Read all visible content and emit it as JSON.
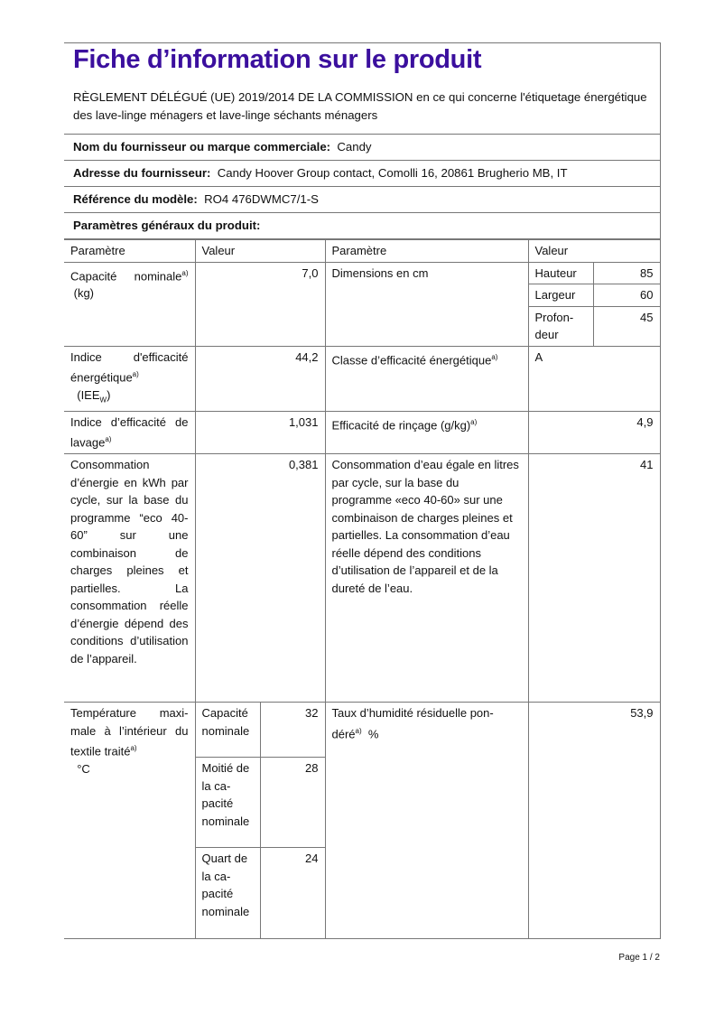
{
  "title": "Fiche d’information sur le produit",
  "regulation": "RÈGLEMENT DÉLÉGUÉ (UE) 2019/2014 DE LA COMMISSION en ce qui concerne l'étiquetage énergétique des lave-linge ménagers et lave-linge séchants ménagers",
  "supplier": {
    "label": "Nom du fournisseur ou marque commerciale:",
    "value": "Candy"
  },
  "address": {
    "label": "Adresse du fournisseur:",
    "value": "Candy Hoover Group contact, Comolli 16, 20861 Brugherio MB, IT"
  },
  "model": {
    "label": "Référence du modèle:",
    "value": "RO4 476DWMC7/1-S"
  },
  "section": "Paramètres généraux du produit:",
  "headers": {
    "param1": "Paramètre",
    "value1": "Valeur",
    "param2": "Paramètre",
    "value2": "Valeur"
  },
  "note": "a)",
  "rows": {
    "capacity": {
      "label": "Capacité nomina­le",
      "unit": "(kg)",
      "value": "7,0"
    },
    "dimensions": {
      "label": "Dimensions en cm",
      "height_label": "Hauteur",
      "height": "85",
      "width_label": "Largeur",
      "width": "60",
      "depth_label": "Profon­deur",
      "depth": "45"
    },
    "eei": {
      "label": "Indice d'efficaci­té énergétique",
      "unit": "(IEE",
      "unit_sub": "W",
      "unit_end": ")",
      "value": "44,2"
    },
    "energy_class": {
      "label": "Classe d’efficacité énergétique",
      "value": "A"
    },
    "washing": {
      "label": "Indice d’efficacité de lavage",
      "value": "1,031"
    },
    "rinsing": {
      "label": "Efficacité de rinçage (g/kg)",
      "value": "4,9"
    },
    "energy": {
      "label": "Consommation d’énergie en kWh par cycle, sur la base du programme “eco 40-60” sur une combinaison de charges pleines et partielles. La consommation réelle d’énergie dé­pend des condi­tions d’utilisation de l’appareil.",
      "value": "0,381"
    },
    "water": {
      "label": "Consommation d’eau égale en litres par cycle, sur la base du programme «eco 40-60» sur une combinaison de charges pleines et partielles. La consommation d’eau réelle dé­pend des conditions d’utilisa­tion de l’appareil et de la dure­té de l’eau.",
      "value": "41"
    },
    "temperature": {
      "label": "Température maxi­male à l’intérieur du textile traité",
      "unit": "°C",
      "sub": [
        {
          "label": "Capaci­té nomi­nale",
          "value": "32"
        },
        {
          "label": "Moitié de la ca­pacité nomi­nale",
          "value": "28"
        },
        {
          "label": "Quart de la ca­pacité nomi­nale",
          "value": "24"
        }
      ]
    },
    "moisture": {
      "label": "Taux d’humidité résiduelle pon­déré",
      "unit": "%",
      "value": "53,9"
    }
  },
  "footer": "Page 1 / 2",
  "colors": {
    "title": "#3b0f9e"
  }
}
